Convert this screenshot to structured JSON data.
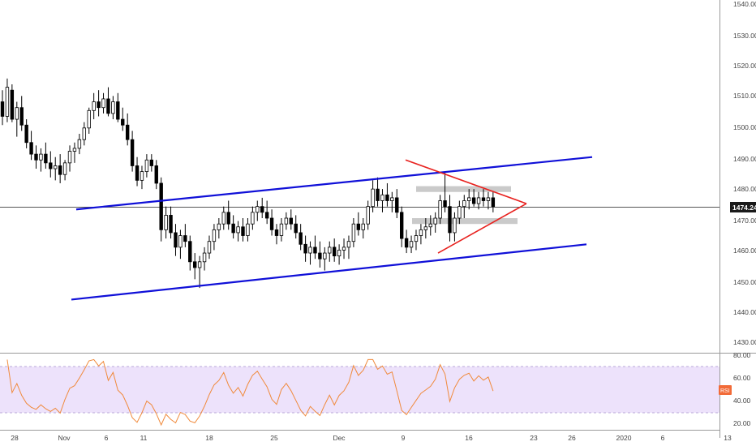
{
  "chart_data": [
    {
      "type": "candlestick",
      "title": "",
      "ylabel": "",
      "ylim": [
        1424,
        1545
      ],
      "y_ticks": [
        "1540.00",
        "1530.00",
        "1520.00",
        "1510.00",
        "1500.00",
        "1490.00",
        "1480.00",
        "1470.00",
        "1460.00",
        "1450.00",
        "1440.00",
        "1430.00"
      ],
      "y_tick_values": [
        1540,
        1530,
        1520,
        1510,
        1500,
        1490,
        1480,
        1470,
        1460,
        1450,
        1440,
        1430
      ],
      "x_ticks": [
        "28",
        "Nov",
        "6",
        "11",
        "18",
        "25",
        "Dec",
        "9",
        "16",
        "23",
        "26",
        "2020",
        "6",
        "13"
      ],
      "last_price": 1474.24,
      "last_price_label": "1474.24",
      "colors": {
        "candle": "#000000",
        "channel": "#1010d8",
        "triangle": "#e8221f",
        "zones": "#c4c4c4",
        "price_line": "#555555",
        "price_label_bg": "#1a1a1a"
      },
      "series": [
        {
          "candles": [
            [
              1510,
              1514,
              1502,
              1505
            ],
            [
              1505,
              1518,
              1503,
              1515
            ],
            [
              1514,
              1516,
              1503,
              1504
            ],
            [
              1504,
              1510,
              1498,
              1508
            ],
            [
              1508,
              1512,
              1500,
              1502
            ],
            [
              1502,
              1504,
              1494,
              1496
            ],
            [
              1496,
              1500,
              1490,
              1492
            ],
            [
              1492,
              1495,
              1487,
              1490
            ],
            [
              1490,
              1494,
              1486,
              1492
            ],
            [
              1492,
              1496,
              1487,
              1489
            ],
            [
              1489,
              1493,
              1484,
              1487
            ],
            [
              1487,
              1491,
              1483,
              1488
            ],
            [
              1488,
              1492,
              1482,
              1485
            ],
            [
              1485,
              1490,
              1483,
              1489
            ],
            [
              1489,
              1495,
              1486,
              1493
            ],
            [
              1493,
              1496,
              1489,
              1494
            ],
            [
              1494,
              1499,
              1492,
              1497
            ],
            [
              1497,
              1503,
              1495,
              1501
            ],
            [
              1501,
              1508,
              1499,
              1507
            ],
            [
              1507,
              1513,
              1504,
              1510
            ],
            [
              1510,
              1514,
              1505,
              1508
            ],
            [
              1508,
              1513,
              1506,
              1511
            ],
            [
              1511,
              1515,
              1505,
              1506
            ],
            [
              1506,
              1512,
              1504,
              1510
            ],
            [
              1510,
              1513,
              1503,
              1504
            ],
            [
              1504,
              1508,
              1500,
              1502
            ],
            [
              1502,
              1506,
              1495,
              1497
            ],
            [
              1497,
              1500,
              1486,
              1488
            ],
            [
              1488,
              1491,
              1481,
              1483
            ],
            [
              1483,
              1488,
              1480,
              1486
            ],
            [
              1486,
              1492,
              1484,
              1490
            ],
            [
              1490,
              1492,
              1486,
              1488
            ],
            [
              1488,
              1490,
              1480,
              1482
            ],
            [
              1482,
              1484,
              1462,
              1466
            ],
            [
              1466,
              1474,
              1463,
              1471
            ],
            [
              1471,
              1474,
              1463,
              1465
            ],
            [
              1465,
              1468,
              1457,
              1460
            ],
            [
              1460,
              1466,
              1456,
              1464
            ],
            [
              1464,
              1468,
              1460,
              1462
            ],
            [
              1462,
              1464,
              1452,
              1455
            ],
            [
              1455,
              1458,
              1449,
              1453
            ],
            [
              1453,
              1457,
              1446,
              1455
            ],
            [
              1455,
              1460,
              1452,
              1458
            ],
            [
              1458,
              1464,
              1456,
              1462
            ],
            [
              1462,
              1468,
              1459,
              1466
            ],
            [
              1466,
              1470,
              1463,
              1468
            ],
            [
              1468,
              1474,
              1466,
              1472
            ],
            [
              1472,
              1476,
              1466,
              1468
            ],
            [
              1468,
              1471,
              1463,
              1465
            ],
            [
              1465,
              1469,
              1462,
              1467
            ],
            [
              1467,
              1470,
              1462,
              1464
            ],
            [
              1464,
              1470,
              1462,
              1468
            ],
            [
              1468,
              1474,
              1466,
              1472
            ],
            [
              1472,
              1476,
              1469,
              1474
            ],
            [
              1474,
              1477,
              1470,
              1472
            ],
            [
              1472,
              1476,
              1468,
              1470
            ],
            [
              1470,
              1473,
              1464,
              1466
            ],
            [
              1466,
              1468,
              1461,
              1464
            ],
            [
              1464,
              1470,
              1462,
              1468
            ],
            [
              1468,
              1472,
              1466,
              1470
            ],
            [
              1470,
              1473,
              1466,
              1468
            ],
            [
              1468,
              1471,
              1463,
              1465
            ],
            [
              1465,
              1468,
              1459,
              1461
            ],
            [
              1461,
              1464,
              1455,
              1458
            ],
            [
              1458,
              1462,
              1454,
              1460
            ],
            [
              1460,
              1464,
              1456,
              1458
            ],
            [
              1458,
              1462,
              1453,
              1456
            ],
            [
              1456,
              1460,
              1452,
              1458
            ],
            [
              1458,
              1462,
              1455,
              1460
            ],
            [
              1460,
              1463,
              1455,
              1457
            ],
            [
              1457,
              1461,
              1454,
              1459
            ],
            [
              1459,
              1463,
              1456,
              1460
            ],
            [
              1460,
              1464,
              1456,
              1462
            ],
            [
              1462,
              1470,
              1460,
              1468
            ],
            [
              1468,
              1472,
              1464,
              1466
            ],
            [
              1466,
              1470,
              1463,
              1468
            ],
            [
              1468,
              1476,
              1466,
              1474
            ],
            [
              1474,
              1483,
              1472,
              1480
            ],
            [
              1480,
              1484,
              1474,
              1476
            ],
            [
              1476,
              1480,
              1472,
              1478
            ],
            [
              1478,
              1482,
              1474,
              1476
            ],
            [
              1476,
              1479,
              1472,
              1477
            ],
            [
              1477,
              1480,
              1470,
              1472
            ],
            [
              1472,
              1474,
              1460,
              1463
            ],
            [
              1463,
              1466,
              1458,
              1460
            ],
            [
              1460,
              1464,
              1458,
              1462
            ],
            [
              1462,
              1466,
              1459,
              1464
            ],
            [
              1464,
              1468,
              1461,
              1466
            ],
            [
              1466,
              1470,
              1463,
              1467
            ],
            [
              1467,
              1471,
              1464,
              1468
            ],
            [
              1468,
              1472,
              1465,
              1470
            ],
            [
              1470,
              1478,
              1468,
              1476
            ],
            [
              1476,
              1486,
              1472,
              1474
            ],
            [
              1474,
              1478,
              1462,
              1465
            ],
            [
              1465,
              1472,
              1462,
              1470
            ],
            [
              1470,
              1476,
              1468,
              1474
            ],
            [
              1474,
              1478,
              1470,
              1476
            ],
            [
              1476,
              1480,
              1473,
              1477
            ],
            [
              1477,
              1480,
              1474,
              1475
            ],
            [
              1475,
              1479,
              1473,
              1477
            ],
            [
              1477,
              1480,
              1474,
              1476
            ],
            [
              1476,
              1479,
              1473,
              1477
            ],
            [
              1477,
              1479,
              1472,
              1474
            ]
          ]
        }
      ],
      "annotations": {
        "channel_upper": [
          [
            94,
            1473
          ],
          [
            730,
            1491
          ]
        ],
        "channel_lower": [
          [
            88,
            1442
          ],
          [
            723,
            1461
          ]
        ],
        "triangle_upper": [
          [
            500,
            1490
          ],
          [
            649,
            1475
          ]
        ],
        "triangle_lower": [
          [
            540,
            1458
          ],
          [
            649,
            1475
          ]
        ],
        "zone_upper": [
          [
            513,
            1481
          ],
          [
            630,
            1479
          ]
        ],
        "zone_lower": [
          [
            508,
            1470
          ],
          [
            638,
            1468
          ]
        ]
      }
    },
    {
      "type": "line",
      "series": [
        {
          "name": "RSI",
          "label": "RSI"
        }
      ],
      "ylim": [
        15,
        82
      ],
      "y_ticks": [
        "80.00",
        "60.00",
        "40.00",
        "20.00"
      ],
      "y_tick_values": [
        80,
        60,
        40,
        20
      ],
      "band": [
        30,
        70
      ],
      "band_color": "#ede2fb",
      "line_color": "#f08a3c",
      "label_bg": "#f26b38"
    }
  ]
}
